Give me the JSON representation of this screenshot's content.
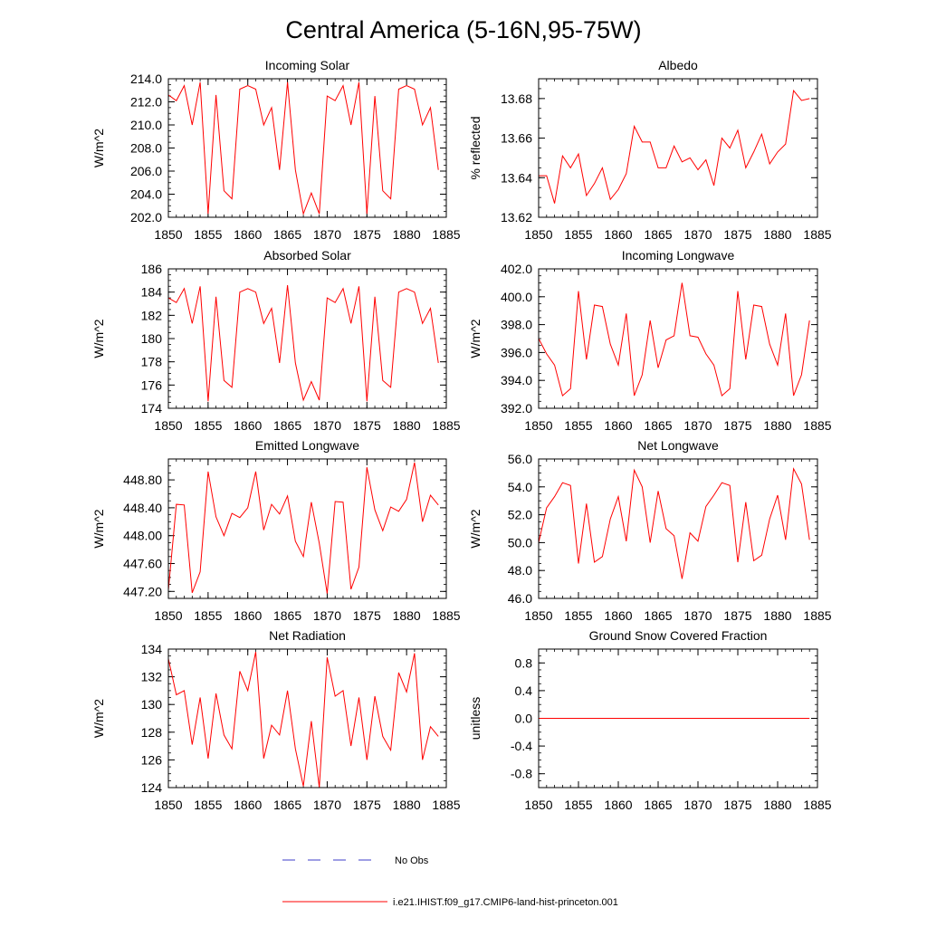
{
  "title": "Central America (5-16N,95-75W)",
  "colors": {
    "series": "#ff0000",
    "obs": "#3c3cc8",
    "axis": "#000000"
  },
  "legend": {
    "placement": "bottom",
    "entries": [
      {
        "label": "No Obs",
        "style": "dashed",
        "color": "#3c3cc8"
      },
      {
        "label": "i.e21.IHIST.f09_g17.CMIP6-land-hist-princeton.001",
        "style": "solid",
        "color": "#ff0000"
      }
    ]
  },
  "chart_data": [
    {
      "type": "line",
      "title": "Incoming Solar",
      "ylabel": "W/m^2",
      "xlim": [
        1850,
        1885
      ],
      "ylim": [
        202,
        214
      ],
      "xticks": [
        1850,
        1855,
        1860,
        1865,
        1870,
        1875,
        1880,
        1885
      ],
      "yticks": [
        202,
        204,
        206,
        208,
        210,
        212,
        214
      ],
      "ytick_labels": [
        "202.0",
        "204.0",
        "206.0",
        "208.0",
        "210.0",
        "212.0",
        "214.0"
      ],
      "x_start": 1850,
      "values": [
        212.6,
        212.1,
        213.4,
        210.0,
        213.7,
        202.3,
        212.6,
        204.3,
        203.6,
        213.1,
        213.4,
        213.1,
        210.0,
        211.5,
        206.1,
        213.7,
        206.1,
        202.3,
        204.1,
        202.3,
        212.5,
        212.1,
        213.4,
        210.0,
        213.7,
        202.3,
        212.5,
        204.3,
        203.6,
        213.1,
        213.4,
        213.1,
        210.0,
        211.5,
        206.1
      ]
    },
    {
      "type": "line",
      "title": "Albedo",
      "ylabel": "% reflected",
      "xlim": [
        1850,
        1885
      ],
      "ylim": [
        13.62,
        13.69
      ],
      "xticks": [
        1850,
        1855,
        1860,
        1865,
        1870,
        1875,
        1880,
        1885
      ],
      "yticks": [
        13.62,
        13.64,
        13.66,
        13.68
      ],
      "ytick_labels": [
        "13.62",
        "13.64",
        "13.66",
        "13.68"
      ],
      "x_start": 1850,
      "values": [
        13.641,
        13.641,
        13.627,
        13.651,
        13.645,
        13.652,
        13.631,
        13.637,
        13.645,
        13.629,
        13.634,
        13.642,
        13.666,
        13.658,
        13.658,
        13.645,
        13.645,
        13.656,
        13.648,
        13.65,
        13.644,
        13.649,
        13.636,
        13.66,
        13.655,
        13.664,
        13.645,
        13.653,
        13.662,
        13.647,
        13.653,
        13.657,
        13.684,
        13.679,
        13.68
      ]
    },
    {
      "type": "line",
      "title": "Absorbed Solar",
      "ylabel": "W/m^2",
      "xlim": [
        1850,
        1885
      ],
      "ylim": [
        174,
        186
      ],
      "xticks": [
        1850,
        1855,
        1860,
        1865,
        1870,
        1875,
        1880,
        1885
      ],
      "yticks": [
        174,
        176,
        178,
        180,
        182,
        184,
        186
      ],
      "ytick_labels": [
        "174",
        "176",
        "178",
        "180",
        "182",
        "184",
        "186"
      ],
      "x_start": 1850,
      "values": [
        183.5,
        183.1,
        184.3,
        181.3,
        184.5,
        174.6,
        183.6,
        176.4,
        175.8,
        184.0,
        184.3,
        184.0,
        181.3,
        182.6,
        177.9,
        184.6,
        177.9,
        174.7,
        176.3,
        174.7,
        183.5,
        183.1,
        184.3,
        181.3,
        184.5,
        174.6,
        183.6,
        176.4,
        175.8,
        184.0,
        184.3,
        184.0,
        181.3,
        182.6,
        177.9
      ]
    },
    {
      "type": "line",
      "title": "Incoming Longwave",
      "ylabel": "W/m^2",
      "xlim": [
        1850,
        1885
      ],
      "ylim": [
        392,
        402
      ],
      "xticks": [
        1850,
        1855,
        1860,
        1865,
        1870,
        1875,
        1880,
        1885
      ],
      "yticks": [
        392,
        394,
        396,
        398,
        400,
        402
      ],
      "ytick_labels": [
        "392.0",
        "394.0",
        "396.0",
        "398.0",
        "400.0",
        "402.0"
      ],
      "x_start": 1850,
      "values": [
        397.0,
        395.9,
        395.1,
        392.9,
        393.4,
        400.4,
        395.5,
        399.4,
        399.3,
        396.6,
        395.1,
        398.8,
        392.9,
        394.4,
        398.3,
        394.9,
        396.9,
        397.2,
        401.0,
        397.2,
        397.1,
        395.9,
        395.1,
        392.9,
        393.4,
        400.4,
        395.5,
        399.4,
        399.3,
        396.6,
        395.1,
        398.8,
        392.9,
        394.4,
        398.3
      ]
    },
    {
      "type": "line",
      "title": "Emitted Longwave",
      "ylabel": "W/m^2",
      "xlim": [
        1850,
        1885
      ],
      "ylim": [
        447.1,
        449.1
      ],
      "xticks": [
        1850,
        1855,
        1860,
        1865,
        1870,
        1875,
        1880,
        1885
      ],
      "yticks": [
        447.2,
        447.6,
        448.0,
        448.4,
        448.8
      ],
      "ytick_labels": [
        "447.20",
        "447.60",
        "448.00",
        "448.40",
        "448.80"
      ],
      "x_start": 1850,
      "values": [
        447.22,
        448.45,
        448.44,
        447.18,
        447.48,
        448.92,
        448.27,
        448.0,
        448.32,
        448.26,
        448.4,
        448.92,
        448.08,
        448.45,
        448.31,
        448.57,
        447.92,
        447.7,
        448.48,
        447.89,
        447.17,
        448.49,
        448.48,
        447.23,
        447.55,
        448.98,
        448.37,
        448.07,
        448.41,
        448.35,
        448.52,
        449.05,
        448.2,
        448.58,
        448.44
      ]
    },
    {
      "type": "line",
      "title": "Net Longwave",
      "ylabel": "W/m^2",
      "xlim": [
        1850,
        1885
      ],
      "ylim": [
        46,
        56
      ],
      "xticks": [
        1850,
        1855,
        1860,
        1865,
        1870,
        1875,
        1880,
        1885
      ],
      "yticks": [
        46,
        48,
        50,
        52,
        54,
        56
      ],
      "ytick_labels": [
        "46.0",
        "48.0",
        "50.0",
        "52.0",
        "54.0",
        "56.0"
      ],
      "x_start": 1850,
      "values": [
        50.0,
        52.5,
        53.3,
        54.3,
        54.1,
        48.5,
        52.8,
        48.6,
        49.0,
        51.7,
        53.3,
        50.1,
        55.2,
        54.0,
        50.0,
        53.7,
        51.0,
        50.5,
        47.4,
        50.7,
        50.1,
        52.6,
        53.4,
        54.3,
        54.1,
        48.6,
        52.9,
        48.7,
        49.1,
        51.7,
        53.4,
        50.2,
        55.3,
        54.2,
        50.2
      ]
    },
    {
      "type": "line",
      "title": "Net Radiation",
      "ylabel": "W/m^2",
      "xlim": [
        1850,
        1885
      ],
      "ylim": [
        124,
        134
      ],
      "xticks": [
        1850,
        1855,
        1860,
        1865,
        1870,
        1875,
        1880,
        1885
      ],
      "yticks": [
        124,
        126,
        128,
        130,
        132,
        134
      ],
      "ytick_labels": [
        "124",
        "126",
        "128",
        "130",
        "132",
        "134"
      ],
      "x_start": 1850,
      "values": [
        133.3,
        130.7,
        131.0,
        127.1,
        130.5,
        126.1,
        130.8,
        127.8,
        126.8,
        132.4,
        131.0,
        133.8,
        126.1,
        128.5,
        127.8,
        131.0,
        126.8,
        124.1,
        128.8,
        124.0,
        133.4,
        130.6,
        131.0,
        127.0,
        130.5,
        126.0,
        130.6,
        127.7,
        126.7,
        132.3,
        130.9,
        133.7,
        126.0,
        128.4,
        127.7
      ]
    },
    {
      "type": "line",
      "title": "Ground Snow Covered Fraction",
      "ylabel": "unitless",
      "xlim": [
        1850,
        1885
      ],
      "ylim": [
        -1.0,
        1.0
      ],
      "xticks": [
        1850,
        1855,
        1860,
        1865,
        1870,
        1875,
        1880,
        1885
      ],
      "yticks": [
        -0.8,
        -0.4,
        0.0,
        0.4,
        0.8
      ],
      "ytick_labels": [
        "-0.8",
        "-0.4",
        "0.0",
        "0.4",
        "0.8"
      ],
      "x_start": 1850,
      "values": [
        0,
        0,
        0,
        0,
        0,
        0,
        0,
        0,
        0,
        0,
        0,
        0,
        0,
        0,
        0,
        0,
        0,
        0,
        0,
        0,
        0,
        0,
        0,
        0,
        0,
        0,
        0,
        0,
        0,
        0,
        0,
        0,
        0,
        0,
        0
      ]
    }
  ]
}
